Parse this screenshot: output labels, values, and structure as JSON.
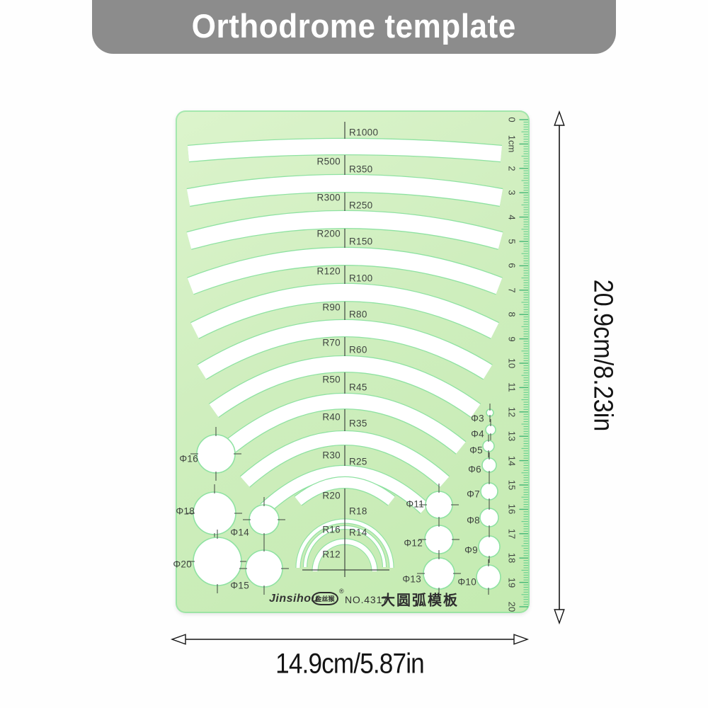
{
  "banner": {
    "title": "Orthodrome template"
  },
  "template": {
    "arc_rows": [
      {
        "left": "",
        "right": "R1000"
      },
      {
        "left": "R500",
        "right": "R350"
      },
      {
        "left": "R300",
        "right": "R250"
      },
      {
        "left": "R200",
        "right": "R150"
      },
      {
        "left": "R120",
        "right": "R100"
      },
      {
        "left": "R90",
        "right": "R80"
      },
      {
        "left": "R70",
        "right": "R60"
      },
      {
        "left": "R50",
        "right": "R45"
      },
      {
        "left": "R40",
        "right": "R35"
      },
      {
        "left": "R30",
        "right": "R25"
      },
      {
        "left": "R20",
        "right": "R18"
      },
      {
        "left": "R16",
        "right": "R14"
      },
      {
        "left": "R12",
        "right": ""
      }
    ],
    "left_circle_labels": [
      "Φ16",
      "Φ18",
      "Φ14",
      "Φ20",
      "Φ15"
    ],
    "right_medium_circle_labels": [
      "Φ11",
      "Φ12",
      "Φ13"
    ],
    "right_small_circle_labels": [
      "Φ3",
      "Φ4",
      "Φ5",
      "Φ6",
      "Φ7",
      "Φ8",
      "Φ9",
      "Φ10"
    ],
    "ruler_labels": [
      "0",
      "1cm",
      "2",
      "3",
      "4",
      "5",
      "6",
      "7",
      "8",
      "9",
      "10",
      "11",
      "12",
      "13",
      "14",
      "15",
      "16",
      "17",
      "18",
      "19",
      "20"
    ],
    "footer": {
      "brand": "Jinsihou",
      "logo_text": "金丝猴",
      "registered_mark": "®",
      "model": "NO.4317",
      "product_name": "大圆弧模板"
    }
  },
  "dimensions": {
    "height_label": "20.9cm/8.23in",
    "width_label": "14.9cm/5.87in"
  },
  "colors": {
    "banner_gray": "#8c8c8c",
    "template_green": "#cdeebc",
    "edge_green": "#8fe2a2",
    "ink": "#3f4540",
    "dimension_ink": "#141414"
  }
}
